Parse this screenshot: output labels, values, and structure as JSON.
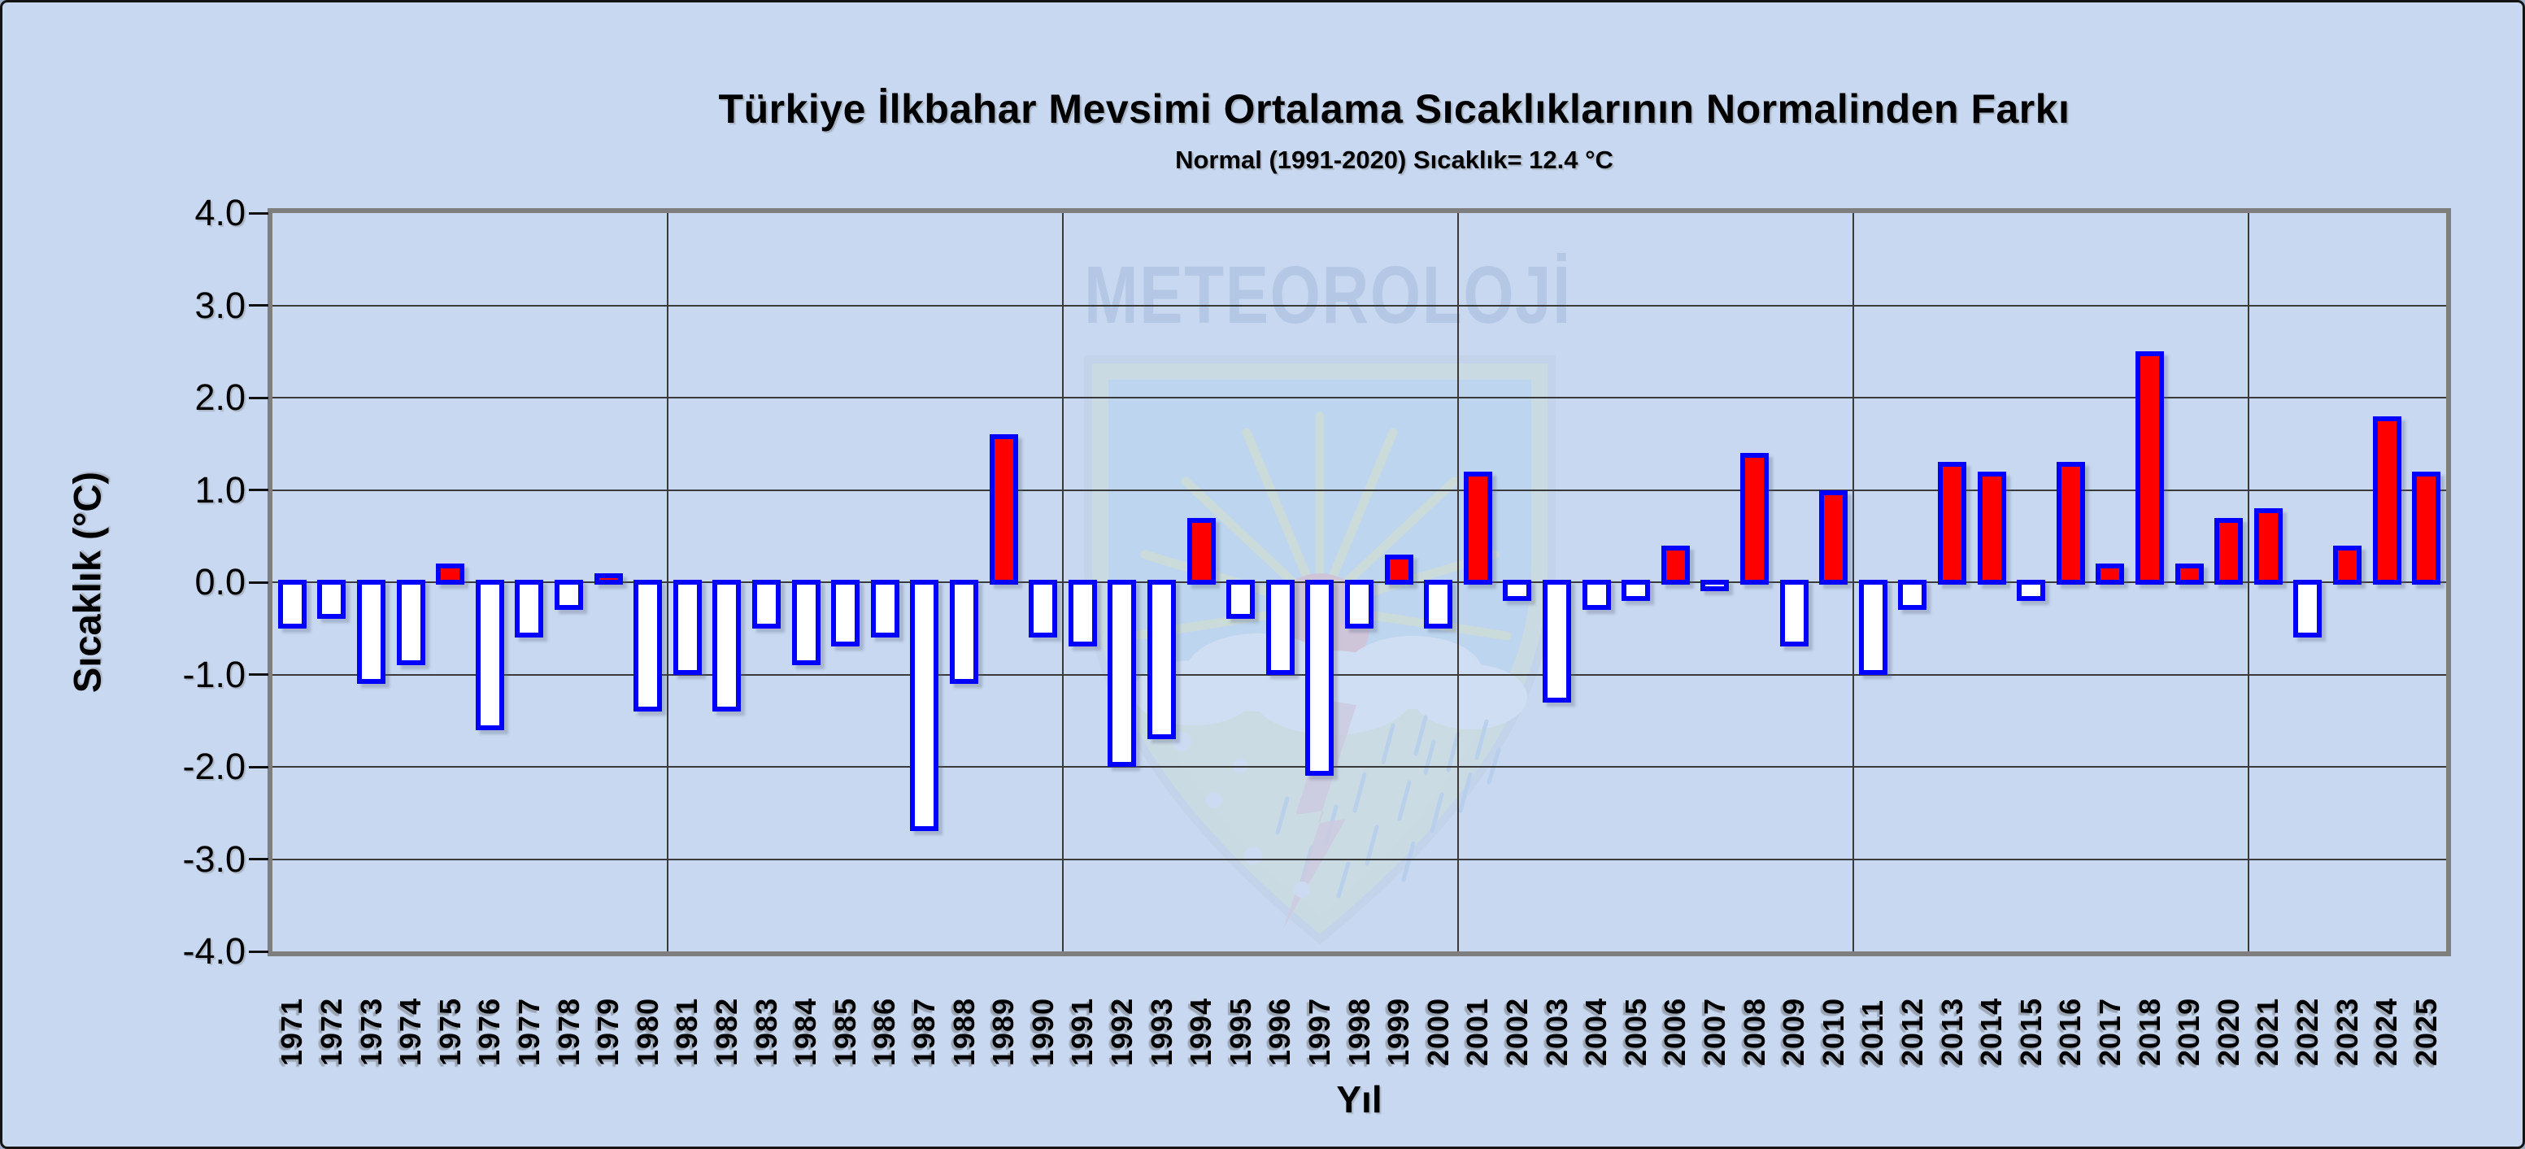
{
  "frame": {
    "background_color": "#C7D8F0",
    "border_color": "#141414"
  },
  "watermark": {
    "text": "METEOROLOJİ"
  },
  "chart_data": {
    "type": "bar",
    "title": "Türkiye İlkbahar Mevsimi Ortalama Sıcaklıklarının Normalinden Farkı",
    "subtitle": "Normal (1991-2020) Sıcaklık= 12.4 °C",
    "xlabel": "Yıl",
    "ylabel": "Sıcaklık (°C)",
    "ylim": [
      -4.0,
      4.0
    ],
    "grid": true,
    "legend": false,
    "yticks": [
      "4.0",
      "3.0",
      "2.0",
      "1.0",
      "0.0",
      "-1.0",
      "-2.0",
      "-3.0",
      "-4.0"
    ],
    "categories": [
      "1971",
      "1972",
      "1973",
      "1974",
      "1975",
      "1976",
      "1977",
      "1978",
      "1979",
      "1980",
      "1981",
      "1982",
      "1983",
      "1984",
      "1985",
      "1986",
      "1987",
      "1988",
      "1989",
      "1990",
      "1991",
      "1992",
      "1993",
      "1994",
      "1995",
      "1996",
      "1997",
      "1998",
      "1999",
      "2000",
      "2001",
      "2002",
      "2003",
      "2004",
      "2005",
      "2006",
      "2007",
      "2008",
      "2009",
      "2010",
      "2011",
      "2012",
      "2013",
      "2014",
      "2015",
      "2016",
      "2017",
      "2018",
      "2019",
      "2020",
      "2021",
      "2022",
      "2023",
      "2024",
      "2025"
    ],
    "values": [
      -0.5,
      -0.4,
      -1.1,
      -0.9,
      0.2,
      -1.6,
      -0.6,
      -0.3,
      0.1,
      -1.4,
      -1.0,
      -1.4,
      -0.5,
      -0.9,
      -0.7,
      -0.6,
      -2.7,
      -1.1,
      1.6,
      -0.6,
      -0.7,
      -2.0,
      -1.7,
      0.7,
      -0.4,
      -1.0,
      -2.1,
      -0.5,
      0.3,
      -0.5,
      1.2,
      -0.2,
      -1.3,
      -0.3,
      -0.2,
      0.4,
      -0.1,
      1.4,
      -0.7,
      1.0,
      -1.0,
      -0.3,
      1.3,
      1.2,
      -0.2,
      1.3,
      0.2,
      2.5,
      0.2,
      0.7,
      0.8,
      -0.6,
      0.4,
      1.8,
      1.2
    ],
    "decade_gridline_after_index": [
      10,
      20,
      30,
      40,
      50
    ],
    "colors": {
      "positive_fill": "#FF0000",
      "negative_fill": "#FFFFFF",
      "bar_border": "#0000FF",
      "gridline": "#3A3A3A",
      "plot_border": "#7E7E7E",
      "text": "#000000"
    }
  }
}
